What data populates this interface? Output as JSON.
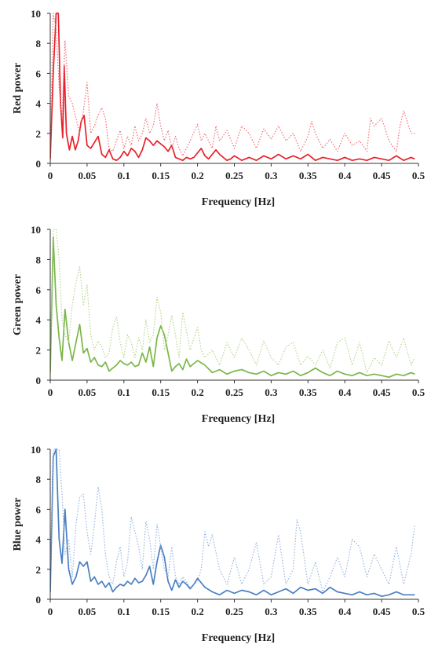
{
  "chart_data": [
    {
      "type": "line",
      "ylabel": "Red power",
      "xlabel": "Frequency  [Hz]",
      "xlim": [
        0,
        0.5
      ],
      "ylim": [
        0,
        10
      ],
      "xticks": [
        "0",
        "0.05",
        "0.1",
        "0.15",
        "0.2",
        "0.25",
        "0.3",
        "0.35",
        "0.4",
        "0.45",
        "0.5"
      ],
      "yticks": [
        "0",
        "2",
        "4",
        "6",
        "8",
        "10"
      ],
      "grid": false,
      "series": [
        {
          "style": "solid",
          "color": "#e8202a",
          "x": [
            0,
            0.004,
            0.008,
            0.011,
            0.014,
            0.017,
            0.019,
            0.022,
            0.026,
            0.03,
            0.034,
            0.038,
            0.042,
            0.046,
            0.05,
            0.055,
            0.06,
            0.065,
            0.07,
            0.075,
            0.08,
            0.085,
            0.09,
            0.095,
            0.1,
            0.105,
            0.11,
            0.115,
            0.12,
            0.125,
            0.13,
            0.135,
            0.14,
            0.145,
            0.15,
            0.155,
            0.16,
            0.165,
            0.17,
            0.175,
            0.18,
            0.185,
            0.19,
            0.195,
            0.2,
            0.205,
            0.21,
            0.215,
            0.22,
            0.225,
            0.23,
            0.235,
            0.24,
            0.245,
            0.25,
            0.26,
            0.27,
            0.28,
            0.29,
            0.3,
            0.31,
            0.32,
            0.33,
            0.34,
            0.35,
            0.36,
            0.37,
            0.38,
            0.39,
            0.4,
            0.41,
            0.42,
            0.43,
            0.44,
            0.45,
            0.46,
            0.47,
            0.48,
            0.49,
            0.495
          ],
          "y": [
            0.3,
            6,
            10,
            10,
            4,
            1.7,
            6.5,
            2,
            0.9,
            1.8,
            0.9,
            1.5,
            2.8,
            3.2,
            1.2,
            1.0,
            1.4,
            1.8,
            0.6,
            0.4,
            0.9,
            0.3,
            0.2,
            0.4,
            0.8,
            0.5,
            1.0,
            0.8,
            0.4,
            0.9,
            1.7,
            1.5,
            1.2,
            1.5,
            1.3,
            1.1,
            0.8,
            1.2,
            0.4,
            0.3,
            0.2,
            0.4,
            0.3,
            0.4,
            0.7,
            1.0,
            0.5,
            0.3,
            0.6,
            0.9,
            0.6,
            0.4,
            0.2,
            0.3,
            0.5,
            0.2,
            0.4,
            0.2,
            0.5,
            0.3,
            0.6,
            0.3,
            0.5,
            0.3,
            0.6,
            0.2,
            0.4,
            0.3,
            0.2,
            0.4,
            0.2,
            0.3,
            0.2,
            0.4,
            0.3,
            0.2,
            0.5,
            0.2,
            0.4,
            0.3
          ]
        },
        {
          "style": "dotted",
          "color": "#f07078",
          "x": [
            0,
            0.004,
            0.008,
            0.012,
            0.016,
            0.02,
            0.025,
            0.03,
            0.035,
            0.04,
            0.045,
            0.05,
            0.055,
            0.06,
            0.065,
            0.07,
            0.075,
            0.08,
            0.085,
            0.09,
            0.095,
            0.1,
            0.105,
            0.11,
            0.115,
            0.12,
            0.125,
            0.13,
            0.135,
            0.14,
            0.145,
            0.15,
            0.155,
            0.16,
            0.165,
            0.17,
            0.175,
            0.18,
            0.19,
            0.2,
            0.205,
            0.21,
            0.22,
            0.225,
            0.23,
            0.24,
            0.25,
            0.26,
            0.27,
            0.28,
            0.29,
            0.3,
            0.31,
            0.32,
            0.33,
            0.34,
            0.35,
            0.355,
            0.36,
            0.37,
            0.38,
            0.39,
            0.4,
            0.41,
            0.42,
            0.43,
            0.435,
            0.44,
            0.45,
            0.46,
            0.47,
            0.475,
            0.48,
            0.49,
            0.495
          ],
          "y": [
            1.0,
            10,
            9,
            5,
            3,
            8.2,
            4.5,
            4.0,
            3.0,
            2.0,
            3.5,
            5.4,
            2.0,
            2.5,
            3.2,
            3.7,
            3.0,
            1.0,
            0.8,
            1.5,
            2.2,
            1.0,
            1.8,
            1.2,
            2.5,
            1.5,
            2.0,
            3.0,
            2.0,
            2.5,
            4.0,
            2.5,
            1.5,
            2.2,
            1.0,
            1.8,
            1.0,
            0.5,
            1.5,
            2.6,
            1.5,
            2.0,
            1.0,
            2.5,
            1.5,
            2.2,
            1.0,
            2.5,
            2.0,
            1.0,
            2.3,
            1.6,
            2.5,
            1.5,
            2.0,
            0.8,
            1.8,
            2.8,
            2.0,
            1.0,
            1.6,
            0.8,
            2.0,
            1.2,
            1.5,
            0.8,
            3.0,
            2.5,
            3.0,
            1.5,
            0.8,
            2.5,
            3.5,
            2.0,
            2.0
          ]
        }
      ]
    },
    {
      "type": "line",
      "ylabel": "Green power",
      "xlabel": "Frequency  [Hz]",
      "xlim": [
        0,
        0.5
      ],
      "ylim": [
        0,
        10
      ],
      "xticks": [
        "0",
        "0.05",
        "0.1",
        "0.15",
        "0.2",
        "0.25",
        "0.3",
        "0.35",
        "0.4",
        "0.45",
        "0.5"
      ],
      "yticks": [
        "0",
        "2",
        "4",
        "6",
        "8",
        "10"
      ],
      "grid": false,
      "series": [
        {
          "style": "solid",
          "color": "#7ab648",
          "x": [
            0,
            0.004,
            0.008,
            0.012,
            0.016,
            0.02,
            0.025,
            0.03,
            0.035,
            0.04,
            0.045,
            0.05,
            0.055,
            0.06,
            0.065,
            0.07,
            0.075,
            0.08,
            0.085,
            0.09,
            0.095,
            0.1,
            0.105,
            0.11,
            0.115,
            0.12,
            0.125,
            0.13,
            0.135,
            0.14,
            0.145,
            0.15,
            0.155,
            0.16,
            0.165,
            0.17,
            0.175,
            0.18,
            0.185,
            0.19,
            0.195,
            0.2,
            0.21,
            0.22,
            0.23,
            0.24,
            0.25,
            0.26,
            0.27,
            0.28,
            0.29,
            0.3,
            0.31,
            0.32,
            0.33,
            0.34,
            0.35,
            0.36,
            0.37,
            0.38,
            0.39,
            0.4,
            0.41,
            0.42,
            0.43,
            0.44,
            0.45,
            0.46,
            0.47,
            0.48,
            0.49,
            0.495
          ],
          "y": [
            0.5,
            9.5,
            5,
            2.8,
            1.3,
            4.7,
            2.5,
            1.3,
            2.5,
            3.7,
            1.8,
            2.1,
            1.2,
            1.5,
            1.0,
            0.9,
            1.2,
            0.6,
            0.8,
            1.0,
            1.3,
            1.1,
            1.0,
            1.2,
            0.9,
            1.0,
            1.8,
            1.2,
            2.2,
            0.9,
            2.8,
            3.6,
            3.0,
            1.8,
            0.6,
            0.9,
            1.1,
            0.7,
            1.4,
            0.9,
            1.1,
            1.3,
            1.0,
            0.5,
            0.7,
            0.4,
            0.6,
            0.7,
            0.5,
            0.4,
            0.6,
            0.3,
            0.5,
            0.4,
            0.6,
            0.3,
            0.5,
            0.8,
            0.5,
            0.3,
            0.6,
            0.4,
            0.3,
            0.5,
            0.3,
            0.4,
            0.3,
            0.2,
            0.4,
            0.3,
            0.5,
            0.4
          ]
        },
        {
          "style": "dotted",
          "color": "#b5d68e",
          "x": [
            0,
            0.004,
            0.008,
            0.012,
            0.016,
            0.02,
            0.025,
            0.03,
            0.035,
            0.04,
            0.045,
            0.05,
            0.055,
            0.06,
            0.065,
            0.07,
            0.075,
            0.08,
            0.085,
            0.09,
            0.095,
            0.1,
            0.105,
            0.11,
            0.115,
            0.12,
            0.125,
            0.13,
            0.135,
            0.14,
            0.145,
            0.15,
            0.155,
            0.16,
            0.165,
            0.17,
            0.175,
            0.18,
            0.19,
            0.2,
            0.205,
            0.21,
            0.22,
            0.23,
            0.24,
            0.25,
            0.26,
            0.27,
            0.28,
            0.29,
            0.3,
            0.31,
            0.32,
            0.33,
            0.34,
            0.35,
            0.36,
            0.37,
            0.38,
            0.39,
            0.4,
            0.41,
            0.42,
            0.43,
            0.44,
            0.45,
            0.46,
            0.47,
            0.48,
            0.49,
            0.495
          ],
          "y": [
            2.0,
            10,
            10,
            8.0,
            4.0,
            3.0,
            2.5,
            5.0,
            6.5,
            7.5,
            5.0,
            6.3,
            3.0,
            2.0,
            2.6,
            2.2,
            1.5,
            1.8,
            3.5,
            4.2,
            2.5,
            1.5,
            3.0,
            2.5,
            1.5,
            2.8,
            2.0,
            4.0,
            2.5,
            3.0,
            5.5,
            4.5,
            2.0,
            3.0,
            4.3,
            3.0,
            1.5,
            4.5,
            2.0,
            3.5,
            2.0,
            1.5,
            2.0,
            1.0,
            2.5,
            1.5,
            2.8,
            2.0,
            1.0,
            2.6,
            1.5,
            1.0,
            2.2,
            2.5,
            1.0,
            1.6,
            1.0,
            2.0,
            0.8,
            2.5,
            2.8,
            1.0,
            2.5,
            0.5,
            1.5,
            1.0,
            2.6,
            1.5,
            2.8,
            1.0,
            1.5
          ]
        }
      ]
    },
    {
      "type": "line",
      "ylabel": "Blue power",
      "xlabel": "Frequency  [Hz]",
      "xlim": [
        0,
        0.5
      ],
      "ylim": [
        0,
        10
      ],
      "xticks": [
        "0",
        "0.05",
        "0.1",
        "0.15",
        "0.2",
        "0.25",
        "0.3",
        "0.35",
        "0.4",
        "0.45",
        "0.5"
      ],
      "yticks": [
        "0",
        "2",
        "4",
        "6",
        "8",
        "10"
      ],
      "grid": false,
      "series": [
        {
          "style": "solid",
          "color": "#4a7fc1",
          "x": [
            0,
            0.004,
            0.008,
            0.012,
            0.016,
            0.02,
            0.025,
            0.03,
            0.035,
            0.04,
            0.045,
            0.05,
            0.055,
            0.06,
            0.065,
            0.07,
            0.075,
            0.08,
            0.085,
            0.09,
            0.095,
            0.1,
            0.105,
            0.11,
            0.115,
            0.12,
            0.125,
            0.13,
            0.135,
            0.14,
            0.145,
            0.15,
            0.155,
            0.16,
            0.165,
            0.17,
            0.175,
            0.18,
            0.185,
            0.19,
            0.195,
            0.2,
            0.21,
            0.22,
            0.23,
            0.24,
            0.25,
            0.26,
            0.27,
            0.28,
            0.29,
            0.3,
            0.31,
            0.32,
            0.33,
            0.34,
            0.35,
            0.36,
            0.37,
            0.38,
            0.39,
            0.4,
            0.41,
            0.42,
            0.43,
            0.44,
            0.45,
            0.46,
            0.47,
            0.48,
            0.49,
            0.495
          ],
          "y": [
            0.5,
            9.5,
            10,
            4.0,
            2.4,
            6.0,
            2.0,
            1.0,
            1.5,
            2.5,
            2.2,
            2.5,
            1.2,
            1.5,
            1.0,
            1.2,
            0.8,
            1.1,
            0.5,
            0.8,
            1.0,
            0.9,
            1.2,
            1.0,
            1.4,
            1.1,
            1.2,
            1.6,
            2.2,
            1.0,
            2.5,
            3.6,
            2.8,
            1.2,
            0.6,
            1.3,
            0.8,
            1.2,
            1.0,
            0.7,
            1.0,
            1.4,
            0.8,
            0.5,
            0.3,
            0.6,
            0.4,
            0.6,
            0.5,
            0.3,
            0.6,
            0.3,
            0.5,
            0.7,
            0.4,
            0.8,
            0.6,
            0.7,
            0.4,
            0.8,
            0.5,
            0.4,
            0.3,
            0.5,
            0.3,
            0.4,
            0.2,
            0.3,
            0.5,
            0.3,
            0.3,
            0.3
          ]
        },
        {
          "style": "dotted",
          "color": "#98b6e0",
          "x": [
            0,
            0.004,
            0.008,
            0.012,
            0.016,
            0.02,
            0.025,
            0.03,
            0.035,
            0.04,
            0.045,
            0.05,
            0.055,
            0.06,
            0.065,
            0.07,
            0.075,
            0.08,
            0.085,
            0.09,
            0.095,
            0.1,
            0.105,
            0.11,
            0.115,
            0.12,
            0.125,
            0.13,
            0.135,
            0.14,
            0.145,
            0.15,
            0.155,
            0.16,
            0.165,
            0.17,
            0.175,
            0.18,
            0.19,
            0.2,
            0.205,
            0.21,
            0.215,
            0.22,
            0.23,
            0.24,
            0.25,
            0.26,
            0.27,
            0.28,
            0.29,
            0.3,
            0.31,
            0.32,
            0.33,
            0.335,
            0.34,
            0.35,
            0.36,
            0.37,
            0.38,
            0.39,
            0.4,
            0.41,
            0.42,
            0.43,
            0.44,
            0.45,
            0.46,
            0.47,
            0.48,
            0.49,
            0.495
          ],
          "y": [
            2.0,
            10,
            10,
            10,
            7.0,
            3.0,
            4.0,
            1.5,
            5.0,
            6.8,
            7.0,
            4.5,
            3.0,
            5.0,
            7.5,
            6.0,
            3.0,
            1.5,
            1.0,
            2.5,
            3.5,
            1.5,
            2.5,
            5.5,
            4.5,
            3.5,
            2.0,
            5.2,
            4.0,
            2.0,
            5.0,
            3.5,
            2.0,
            1.5,
            3.5,
            1.5,
            1.0,
            1.5,
            0.8,
            1.2,
            2.0,
            4.5,
            3.5,
            4.3,
            2.0,
            1.0,
            2.8,
            1.0,
            2.0,
            3.8,
            1.0,
            1.5,
            4.3,
            1.0,
            2.0,
            5.3,
            4.5,
            1.0,
            2.5,
            0.5,
            1.5,
            2.8,
            1.5,
            4.0,
            3.5,
            1.5,
            3.0,
            2.0,
            1.0,
            3.5,
            1.0,
            3.0,
            5.0
          ]
        }
      ]
    }
  ]
}
